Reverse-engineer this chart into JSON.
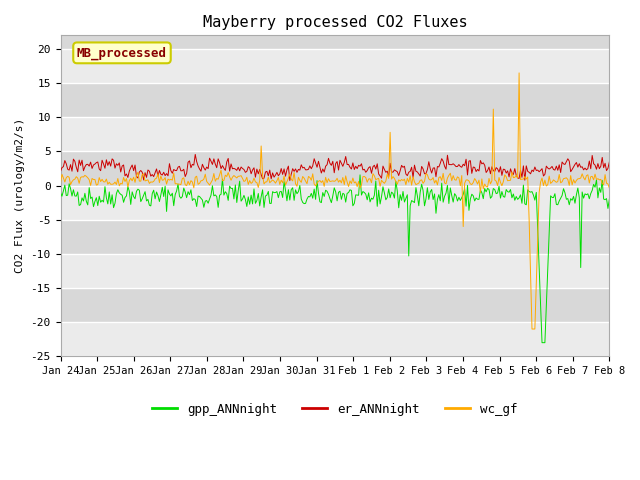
{
  "title": "Mayberry processed CO2 Fluxes",
  "ylabel": "CO2 Flux (urology/m2/s)",
  "ylim": [
    -25,
    22
  ],
  "yticks": [
    -25,
    -20,
    -15,
    -10,
    -5,
    0,
    5,
    10,
    15,
    20
  ],
  "fig_bg_color": "#ffffff",
  "plot_bg_color": "#d8d8d8",
  "gpp_color": "#00dd00",
  "er_color": "#cc0000",
  "wc_color": "#ffaa00",
  "legend_label": "MB_processed",
  "legend_label_color": "#880000",
  "legend_box_facecolor": "#ffffcc",
  "legend_box_edgecolor": "#cccc00",
  "series_names": [
    "gpp_ANNnight",
    "er_ANNnight",
    "wc_gf"
  ],
  "n_points": 384,
  "seed": 42,
  "tick_labels": [
    "Jan 24",
    "Jan 25",
    "Jan 26",
    "Jan 27",
    "Jan 28",
    "Jan 29",
    "Jan 30",
    "Jan 31",
    "Feb 1",
    "Feb 2",
    "Feb 3",
    "Feb 4",
    "Feb 5",
    "Feb 6",
    "Feb 7",
    "Feb 8"
  ]
}
